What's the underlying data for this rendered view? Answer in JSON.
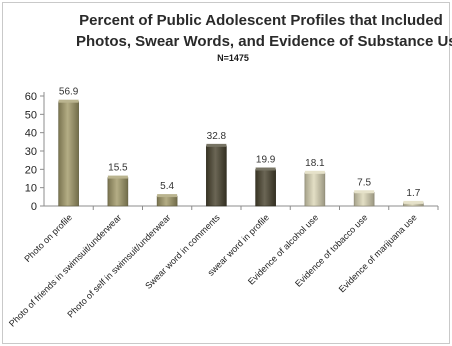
{
  "chart_data": {
    "type": "bar",
    "title": "Percent of Public Adolescent Profiles that Included",
    "title_line2": "Photos, Swear Words, and Evidence of Substance Use",
    "subtitle": "N=1475",
    "categories": [
      "Photo on profile",
      "Photo of friends in swimsuit/underwear",
      "Photo of self in swimsuit/underwear",
      "Swear word in comments",
      "swear word in profile",
      "Evidence of alcohol use",
      "Evidence of tobacco use",
      "Evidence of marijuana use"
    ],
    "values": [
      56.9,
      15.5,
      5.4,
      32.8,
      19.9,
      18.1,
      7.5,
      1.7
    ],
    "data_labels": [
      "56.9",
      "15.5",
      "5.4",
      "32.8",
      "19.9",
      "18.1",
      "7.5",
      "1.7"
    ],
    "bar_colors": [
      "#a39b6a",
      "#a39b6a",
      "#a39b6a",
      "#4a4530",
      "#4a4530",
      "#ddd8b8",
      "#ddd8b8",
      "#ddd8b8"
    ],
    "ylim": [
      0,
      60
    ],
    "yticks": [
      0,
      10,
      20,
      30,
      40,
      50,
      60
    ],
    "grid": false,
    "legend": "none"
  }
}
